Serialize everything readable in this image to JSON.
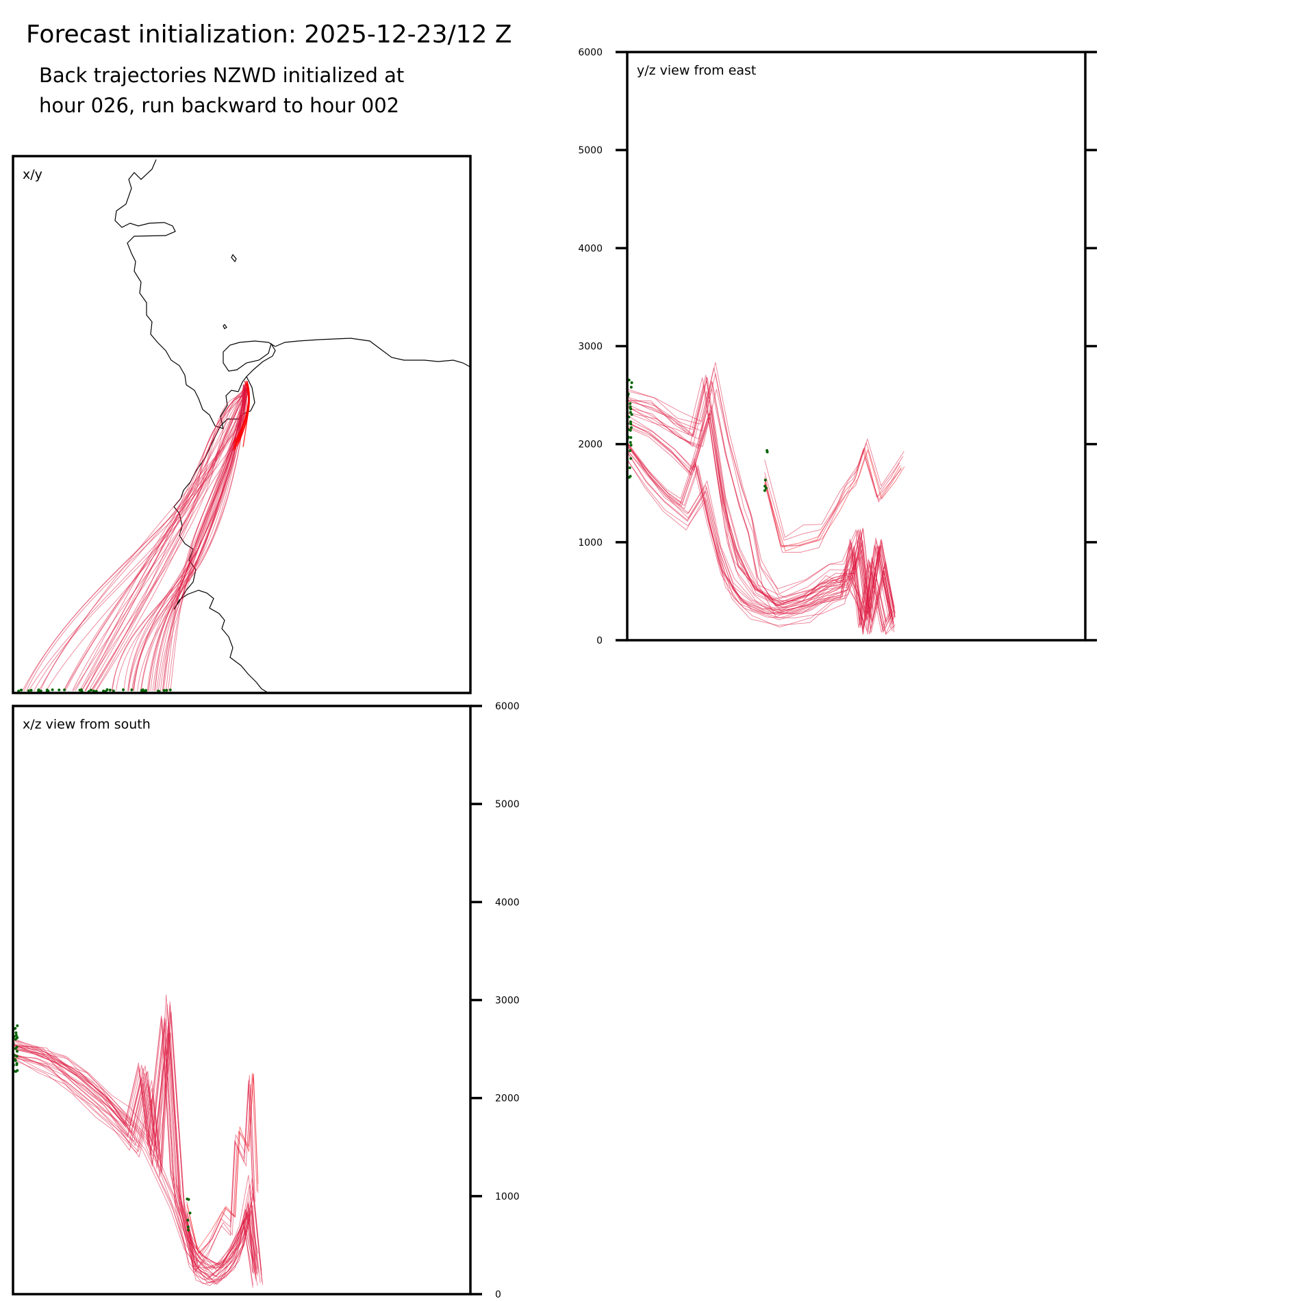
{
  "header": {
    "title": "Forecast initialization: 2025-12-23/12 Z",
    "subtitle_line1": "Back trajectories NZWD initialized at",
    "subtitle_line2": "hour 026, run backward to hour 002"
  },
  "colors": {
    "trajectory": "#dc143c",
    "trajectory_recent": "#ff0000",
    "start_points": "#006400",
    "coastline": "#000000",
    "frame": "#000000"
  },
  "chart_data": [
    {
      "type": "line",
      "panel": "x/y",
      "title": "x/y",
      "xlabel": "",
      "ylabel": "",
      "grid": false,
      "axis_ticks": "none",
      "description_values": "map view of trajectories converging to the NE near the release point"
    },
    {
      "type": "line",
      "panel": "y/z",
      "title": "y/z view from east",
      "xlabel": "",
      "ylabel": "",
      "ylim": [
        0,
        6000
      ],
      "yticks": [
        "0",
        "1000",
        "2000",
        "3000",
        "4000",
        "5000",
        "6000"
      ],
      "yticks_side": "left",
      "grid": false,
      "series": [
        {
          "values": [
            [
              0.0,
              2400
            ],
            [
              0.05,
              2300
            ],
            [
              0.1,
              2150
            ],
            [
              0.14,
              2000
            ],
            [
              0.17,
              2600
            ],
            [
              0.2,
              1600
            ],
            [
              0.22,
              1000
            ],
            [
              0.24,
              700
            ],
            [
              0.28,
              450
            ],
            [
              0.32,
              300
            ],
            [
              0.38,
              350
            ],
            [
              0.42,
              450
            ],
            [
              0.46,
              500
            ],
            [
              0.48,
              600
            ],
            [
              0.5,
              400
            ],
            [
              0.52,
              150
            ],
            [
              0.55,
              900
            ],
            [
              0.58,
              200
            ]
          ]
        },
        {
          "values": [
            [
              0.0,
              2000
            ],
            [
              0.05,
              1700
            ],
            [
              0.09,
              1500
            ],
            [
              0.12,
              1400
            ],
            [
              0.15,
              1800
            ],
            [
              0.18,
              1200
            ],
            [
              0.21,
              700
            ],
            [
              0.25,
              400
            ],
            [
              0.3,
              300
            ],
            [
              0.36,
              300
            ],
            [
              0.42,
              400
            ],
            [
              0.47,
              450
            ],
            [
              0.49,
              1000
            ],
            [
              0.51,
              150
            ],
            [
              0.53,
              800
            ],
            [
              0.56,
              100
            ],
            [
              0.58,
              300
            ]
          ]
        },
        {
          "values": [
            [
              0.0,
              2450
            ],
            [
              0.06,
              2350
            ],
            [
              0.11,
              2200
            ],
            [
              0.16,
              2100
            ],
            [
              0.19,
              2700
            ],
            [
              0.22,
              2000
            ],
            [
              0.25,
              1500
            ],
            [
              0.27,
              1200
            ],
            [
              0.29,
              700
            ],
            [
              0.33,
              400
            ],
            [
              0.39,
              500
            ],
            [
              0.44,
              700
            ],
            [
              0.47,
              700
            ],
            [
              0.5,
              1000
            ],
            [
              0.52,
              200
            ],
            [
              0.54,
              900
            ],
            [
              0.57,
              250
            ]
          ]
        },
        {
          "values": [
            [
              0.0,
              1900
            ],
            [
              0.04,
              1600
            ],
            [
              0.08,
              1400
            ],
            [
              0.13,
              1200
            ],
            [
              0.17,
              1500
            ],
            [
              0.2,
              900
            ],
            [
              0.23,
              500
            ],
            [
              0.27,
              300
            ],
            [
              0.33,
              200
            ],
            [
              0.4,
              300
            ],
            [
              0.45,
              450
            ],
            [
              0.48,
              500
            ],
            [
              0.51,
              900
            ],
            [
              0.53,
              100
            ],
            [
              0.56,
              700
            ],
            [
              0.58,
              150
            ]
          ]
        },
        {
          "values": [
            [
              0.0,
              2200
            ],
            [
              0.05,
              2100
            ],
            [
              0.1,
              1900
            ],
            [
              0.14,
              1700
            ],
            [
              0.18,
              2300
            ],
            [
              0.21,
              1400
            ],
            [
              0.24,
              900
            ],
            [
              0.28,
              500
            ],
            [
              0.34,
              350
            ],
            [
              0.4,
              450
            ],
            [
              0.45,
              600
            ],
            [
              0.49,
              650
            ],
            [
              0.51,
              1100
            ],
            [
              0.53,
              250
            ],
            [
              0.55,
              950
            ],
            [
              0.58,
              200
            ]
          ]
        },
        {
          "values": [
            [
              0.3,
              1700
            ],
            [
              0.34,
              1000
            ],
            [
              0.38,
              1050
            ],
            [
              0.42,
              1100
            ],
            [
              0.46,
              1400
            ],
            [
              0.48,
              1600
            ],
            [
              0.5,
              1700
            ],
            [
              0.52,
              2000
            ],
            [
              0.55,
              1500
            ],
            [
              0.58,
              1700
            ],
            [
              0.6,
              1850
            ]
          ]
        }
      ]
    },
    {
      "type": "line",
      "panel": "x/z",
      "title": "x/z view from south",
      "xlabel": "",
      "ylabel": "",
      "ylim": [
        0,
        6000
      ],
      "yticks": [
        "0",
        "1000",
        "2000",
        "3000",
        "4000",
        "5000",
        "6000"
      ],
      "yticks_side": "right",
      "grid": false,
      "series": [
        {
          "values": [
            [
              0.0,
              2500
            ],
            [
              0.05,
              2450
            ],
            [
              0.1,
              2350
            ],
            [
              0.15,
              2200
            ],
            [
              0.2,
              2000
            ],
            [
              0.25,
              1700
            ],
            [
              0.28,
              2300
            ],
            [
              0.3,
              1500
            ],
            [
              0.33,
              2800
            ],
            [
              0.35,
              1200
            ],
            [
              0.38,
              600
            ],
            [
              0.4,
              250
            ],
            [
              0.43,
              150
            ],
            [
              0.47,
              300
            ],
            [
              0.5,
              500
            ],
            [
              0.52,
              900
            ],
            [
              0.53,
              200
            ]
          ]
        },
        {
          "values": [
            [
              0.0,
              2500
            ],
            [
              0.06,
              2400
            ],
            [
              0.12,
              2250
            ],
            [
              0.17,
              2050
            ],
            [
              0.22,
              1850
            ],
            [
              0.26,
              1600
            ],
            [
              0.29,
              2200
            ],
            [
              0.31,
              1400
            ],
            [
              0.34,
              2600
            ],
            [
              0.36,
              1000
            ],
            [
              0.39,
              400
            ],
            [
              0.42,
              200
            ],
            [
              0.46,
              250
            ],
            [
              0.49,
              450
            ],
            [
              0.51,
              800
            ],
            [
              0.53,
              150
            ]
          ]
        },
        {
          "values": [
            [
              0.0,
              2500
            ],
            [
              0.07,
              2420
            ],
            [
              0.13,
              2150
            ],
            [
              0.18,
              1950
            ],
            [
              0.23,
              1750
            ],
            [
              0.27,
              1500
            ],
            [
              0.3,
              2100
            ],
            [
              0.32,
              1300
            ],
            [
              0.34,
              2950
            ],
            [
              0.37,
              900
            ],
            [
              0.4,
              350
            ],
            [
              0.44,
              180
            ],
            [
              0.48,
              350
            ],
            [
              0.5,
              600
            ],
            [
              0.52,
              1100
            ],
            [
              0.54,
              200
            ]
          ]
        },
        {
          "values": [
            [
              0.0,
              2480
            ],
            [
              0.05,
              2400
            ],
            [
              0.11,
              2300
            ],
            [
              0.16,
              2150
            ],
            [
              0.21,
              1950
            ],
            [
              0.25,
              1750
            ],
            [
              0.29,
              1500
            ],
            [
              0.32,
              1200
            ],
            [
              0.35,
              900
            ],
            [
              0.38,
              500
            ],
            [
              0.41,
              300
            ],
            [
              0.45,
              200
            ],
            [
              0.48,
              400
            ],
            [
              0.51,
              700
            ],
            [
              0.53,
              250
            ]
          ]
        },
        {
          "values": [
            [
              0.38,
              800
            ],
            [
              0.4,
              300
            ],
            [
              0.43,
              500
            ],
            [
              0.46,
              800
            ],
            [
              0.48,
              700
            ],
            [
              0.49,
              1600
            ],
            [
              0.51,
              1400
            ],
            [
              0.52,
              2200
            ],
            [
              0.53,
              1000
            ]
          ]
        }
      ]
    }
  ]
}
